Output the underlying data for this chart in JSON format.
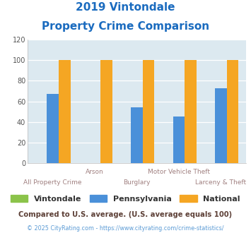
{
  "title_line1": "2019 Vintondale",
  "title_line2": "Property Crime Comparison",
  "title_color": "#1a6bbf",
  "categories": [
    "All Property Crime",
    "Arson",
    "Burglary",
    "Motor Vehicle Theft",
    "Larceny & Theft"
  ],
  "x_labels_row1": [
    "",
    "Arson",
    "",
    "Motor Vehicle Theft",
    ""
  ],
  "x_labels_row2": [
    "All Property Crime",
    "",
    "Burglary",
    "",
    "Larceny & Theft"
  ],
  "vintondale": [
    0,
    0,
    0,
    0,
    0
  ],
  "pennsylvania": [
    67,
    0,
    54,
    45,
    73
  ],
  "national": [
    100,
    100,
    100,
    100,
    100
  ],
  "vintondale_color": "#8bc34a",
  "pennsylvania_color": "#4a90d9",
  "national_color": "#f5a623",
  "ylim": [
    0,
    120
  ],
  "yticks": [
    0,
    20,
    40,
    60,
    80,
    100,
    120
  ],
  "background_color": "#dce9f0",
  "grid_color": "#ffffff",
  "bar_width": 0.28,
  "legend_labels": [
    "Vintondale",
    "Pennsylvania",
    "National"
  ],
  "footnote1": "Compared to U.S. average. (U.S. average equals 100)",
  "footnote2": "© 2025 CityRating.com - https://www.cityrating.com/crime-statistics/",
  "footnote1_color": "#5d4037",
  "footnote2_color": "#5b9bd5",
  "xlabel_color": "#a08080"
}
